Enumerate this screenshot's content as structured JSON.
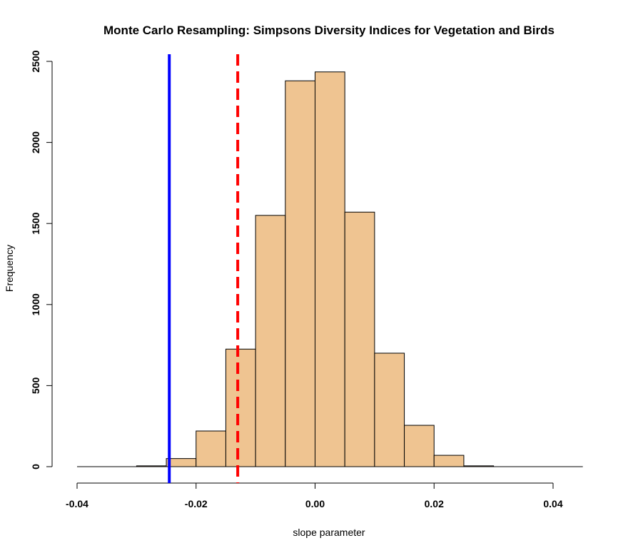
{
  "chart_data": {
    "type": "bar",
    "title": "Monte Carlo Resampling: Simpsons Diversity Indices for Vegetation and Birds",
    "xlabel": "slope parameter",
    "ylabel": "Frequency",
    "xlim": [
      -0.04,
      0.045
    ],
    "ylim": [
      0,
      2500
    ],
    "x_ticks": [
      -0.04,
      -0.02,
      0.0,
      0.02,
      0.04
    ],
    "x_tick_labels": [
      "-0.04",
      "-0.02",
      "0.00",
      "0.02",
      "0.04"
    ],
    "y_ticks": [
      0,
      500,
      1000,
      1500,
      2000,
      2500
    ],
    "y_tick_labels": [
      "0",
      "500",
      "1000",
      "1500",
      "2000",
      "2500"
    ],
    "bin_edges": [
      -0.04,
      -0.035,
      -0.03,
      -0.025,
      -0.02,
      -0.015,
      -0.01,
      -0.005,
      0.0,
      0.005,
      0.01,
      0.015,
      0.02,
      0.025,
      0.03,
      0.035,
      0.04,
      0.045
    ],
    "counts": [
      0,
      0,
      5,
      50,
      220,
      725,
      1550,
      2380,
      2435,
      1570,
      700,
      255,
      70,
      5,
      0,
      0,
      0
    ],
    "bar_fill": "#efc491",
    "bar_stroke": "#000000",
    "reference_lines": [
      {
        "x": -0.0245,
        "color": "#0000ff",
        "style": "solid"
      },
      {
        "x": -0.013,
        "color": "#ff0000",
        "style": "dashed"
      }
    ],
    "grid": false,
    "legend": "none"
  }
}
